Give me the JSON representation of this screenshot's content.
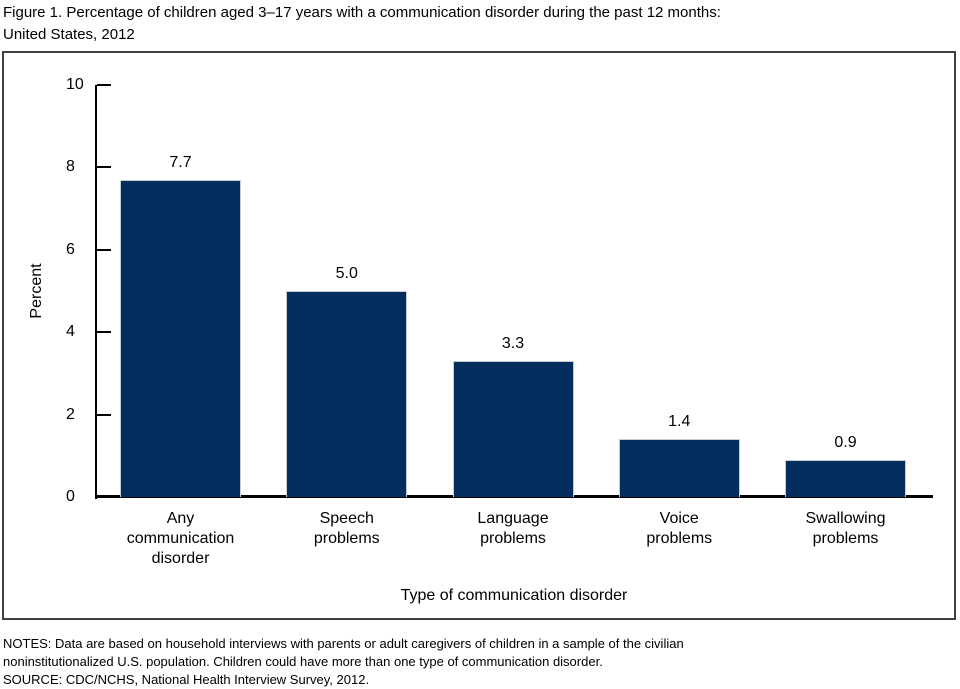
{
  "figure": {
    "title_line1": "Figure 1. Percentage of children aged 3–17 years with a communication disorder during the past 12 months:",
    "title_line2": "United States, 2012"
  },
  "chart_data": {
    "type": "bar",
    "title": "Figure 1. Percentage of children aged 3–17 years with a communication disorder during the past 12 months: United States, 2012",
    "categories": [
      "Any communication disorder",
      "Speech problems",
      "Language problems",
      "Voice problems",
      "Swallowing problems"
    ],
    "category_label_lines": [
      [
        "Any",
        "communication",
        "disorder"
      ],
      [
        "Speech",
        "problems"
      ],
      [
        "Language",
        "problems"
      ],
      [
        "Voice",
        "problems"
      ],
      [
        "Swallowing",
        "problems"
      ]
    ],
    "values": [
      7.7,
      5.0,
      3.3,
      1.4,
      0.9
    ],
    "value_labels": [
      "7.7",
      "5.0",
      "3.3",
      "1.4",
      "0.9"
    ],
    "xlabel": "Type of communication disorder",
    "ylabel": "Percent",
    "ylim": [
      0,
      10
    ],
    "yticks": [
      0,
      2,
      4,
      6,
      8,
      10
    ],
    "grid": false,
    "legend": "none",
    "bar_color": "#032d5c",
    "axis_color": "#000000"
  },
  "notes": {
    "line1": "NOTES: Data are based on household interviews with parents or adult caregivers of children in a sample of the civilian",
    "line2": "noninstitutionalized U.S. population. Children could have more than one type of communication disorder.",
    "source": "SOURCE: CDC/NCHS, National Health Interview Survey, 2012."
  }
}
